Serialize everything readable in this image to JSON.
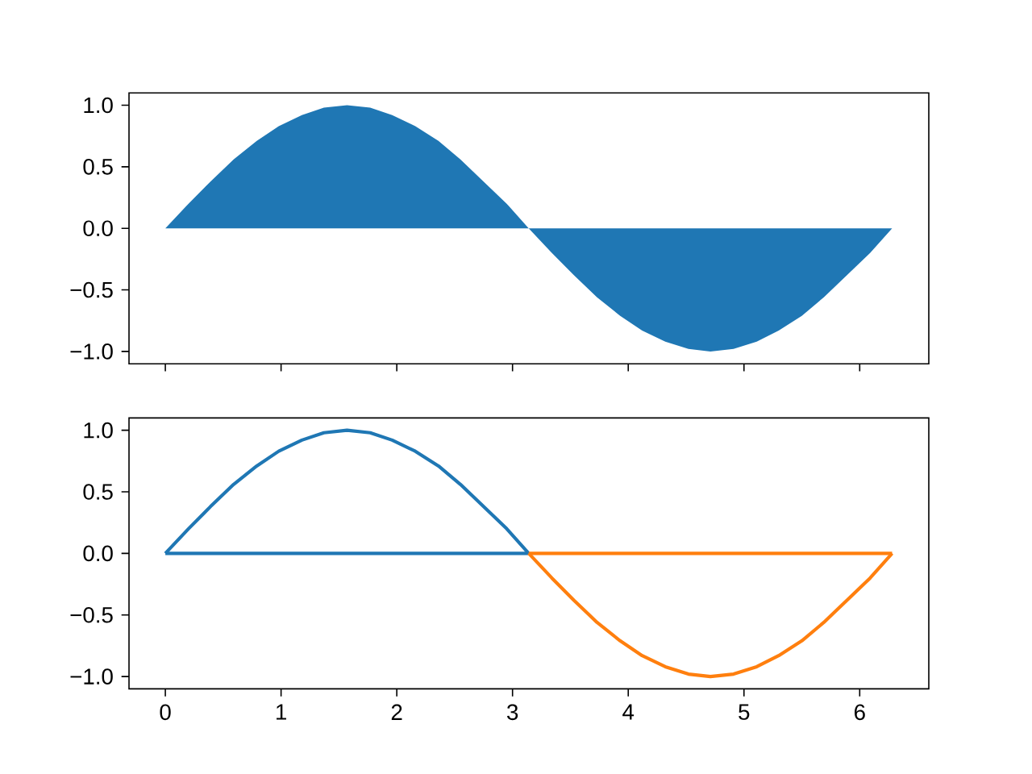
{
  "chart_data": [
    {
      "type": "area",
      "x": [
        0,
        0.2,
        0.39,
        0.59,
        0.79,
        0.98,
        1.18,
        1.37,
        1.57,
        1.77,
        1.96,
        2.16,
        2.36,
        2.55,
        2.75,
        2.95,
        3.14,
        3.34,
        3.53,
        3.73,
        3.93,
        4.12,
        4.32,
        4.52,
        4.71,
        4.91,
        5.11,
        5.3,
        5.5,
        5.69,
        5.89,
        6.09,
        6.28
      ],
      "series": [
        {
          "color": "#1f77b4",
          "values": [
            0,
            0.2,
            0.38,
            0.56,
            0.71,
            0.83,
            0.92,
            0.98,
            1,
            0.98,
            0.92,
            0.83,
            0.71,
            0.56,
            0.38,
            0.2,
            0,
            -0.2,
            -0.38,
            -0.56,
            -0.71,
            -0.83,
            -0.92,
            -0.98,
            -1,
            -0.98,
            -0.92,
            -0.83,
            -0.71,
            -0.56,
            -0.38,
            -0.2,
            0
          ]
        }
      ],
      "xlim": [
        -0.314,
        6.597
      ],
      "ylim": [
        -1.1,
        1.1
      ],
      "xticks": [
        0,
        1,
        2,
        3,
        4,
        5,
        6
      ],
      "yticks": [
        {
          "value": -1,
          "label": "−1.0"
        },
        {
          "value": -0.5,
          "label": "−0.5"
        },
        {
          "value": 0,
          "label": "0.0"
        },
        {
          "value": 0.5,
          "label": "0.5"
        },
        {
          "value": 1,
          "label": "1.0"
        }
      ],
      "tick_labels": "y"
    },
    {
      "type": "line",
      "series": [
        {
          "color": "#1f77b4",
          "x": [
            0,
            0.2,
            0.39,
            0.59,
            0.79,
            0.98,
            1.18,
            1.37,
            1.57,
            1.77,
            1.96,
            2.16,
            2.36,
            2.55,
            2.75,
            2.95,
            3.14
          ],
          "values": [
            0,
            0.2,
            0.38,
            0.56,
            0.71,
            0.83,
            0.92,
            0.98,
            1,
            0.98,
            0.92,
            0.83,
            0.71,
            0.56,
            0.38,
            0.2,
            0
          ]
        },
        {
          "color": "#1f77b4",
          "x": [
            0,
            3.14
          ],
          "values": [
            0,
            0
          ]
        },
        {
          "color": "#ff7f0e",
          "x": [
            3.14,
            3.34,
            3.53,
            3.73,
            3.93,
            4.12,
            4.32,
            4.52,
            4.71,
            4.91,
            5.11,
            5.3,
            5.5,
            5.69,
            5.89,
            6.09,
            6.28
          ],
          "values": [
            0,
            -0.2,
            -0.38,
            -0.56,
            -0.71,
            -0.83,
            -0.92,
            -0.98,
            -1,
            -0.98,
            -0.92,
            -0.83,
            -0.71,
            -0.56,
            -0.38,
            -0.2,
            0
          ]
        },
        {
          "color": "#ff7f0e",
          "x": [
            3.14,
            6.28
          ],
          "values": [
            0,
            0
          ]
        }
      ],
      "xlim": [
        -0.314,
        6.597
      ],
      "ylim": [
        -1.1,
        1.1
      ],
      "xticks": [
        0,
        1,
        2,
        3,
        4,
        5,
        6
      ],
      "yticks": [
        {
          "value": -1,
          "label": "−1.0"
        },
        {
          "value": -0.5,
          "label": "−0.5"
        },
        {
          "value": 0,
          "label": "0.0"
        },
        {
          "value": 0.5,
          "label": "0.5"
        },
        {
          "value": 1,
          "label": "1.0"
        }
      ]
    }
  ]
}
